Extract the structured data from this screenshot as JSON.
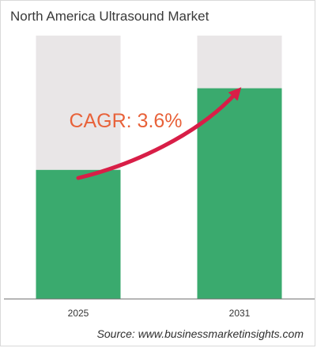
{
  "chart_data": {
    "type": "bar",
    "title": "North America Ultrasound Market",
    "categories": [
      "2025",
      "2031"
    ],
    "values": [
      0.49,
      0.8
    ],
    "value_unit": "relative bar height (no numeric values printed)",
    "annotation": "CAGR: 3.6%",
    "source": "Source: www.businessmarketinsights.com",
    "grid": false,
    "legend": "none",
    "colors": {
      "bar": "#3aaa6e",
      "bar_track": "#e9e6e7",
      "arrow": "#d81e47",
      "annotation": "#e8623a",
      "axis": "#6e6e6e"
    }
  }
}
